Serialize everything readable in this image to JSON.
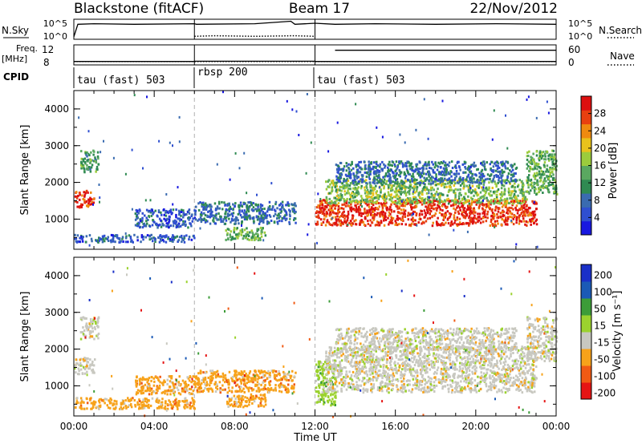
{
  "header": {
    "title": "Blackstone (fitACF)",
    "beam": "Beam 17",
    "date": "22/Nov/2012"
  },
  "colors": {
    "power": [
      "#1818e0",
      "#2f4fd0",
      "#3a6bb0",
      "#2f8a52",
      "#5aa860",
      "#9ccc3c",
      "#e8c21c",
      "#ef8a10",
      "#e84010",
      "#dd1010"
    ],
    "velocity": [
      "#e51414",
      "#f05a14",
      "#f7a21a",
      "#c8c8c0",
      "#9bd22e",
      "#3c9c38",
      "#1b5ab6",
      "#1a30c8"
    ],
    "guide": "#b0b0b0"
  },
  "chart_data": [
    {
      "type": "line",
      "name": "nsky-nsearch",
      "left_label": "N.Sky",
      "right_label": "N.Search",
      "left_ticks": [
        "10^5",
        "10^0"
      ],
      "right_ticks": [
        "10^5",
        "10^0"
      ],
      "series": [
        {
          "name": "N.Sky",
          "style": "solid",
          "x": [
            0,
            0.2,
            1,
            3,
            6,
            6.1,
            9,
            10.8,
            11,
            12,
            13,
            15,
            18,
            21,
            24
          ],
          "y": [
            0.5,
            3.0,
            3.1,
            3.0,
            3.1,
            3.0,
            3.1,
            3.6,
            3.0,
            3.2,
            3.0,
            3.1,
            3.0,
            3.1,
            3.0
          ]
        },
        {
          "name": "N.Search",
          "style": "dotted",
          "x": [
            6,
            7,
            9,
            11,
            12
          ],
          "y": [
            0.6,
            0.7,
            0.6,
            0.7,
            0.6
          ]
        }
      ]
    },
    {
      "type": "line",
      "name": "freq-nave",
      "left_label": "Freq.",
      "left_unit": "[MHz]",
      "right_label": "Nave",
      "left_ticks": [
        "12",
        "8"
      ],
      "right_ticks": [
        "60",
        "0"
      ],
      "series": [
        {
          "name": "Freq.",
          "style": "solid",
          "x": [
            0,
            6,
            6,
            12,
            12,
            24
          ],
          "y": [
            10.3,
            10.3,
            11.0,
            11.0,
            10.4,
            10.4
          ]
        },
        {
          "name": "Nave",
          "style": "dotted",
          "x": [
            0,
            6,
            12,
            12.9,
            13,
            24
          ],
          "y": [
            10,
            10,
            10,
            10,
            10,
            10
          ]
        },
        {
          "name": "Nave-upper",
          "style": "solid",
          "x": [
            13,
            24
          ],
          "y": [
            44,
            44
          ]
        }
      ]
    },
    {
      "type": "table",
      "name": "cpid",
      "label": "CPID",
      "segments": [
        {
          "start": 0,
          "end": 6,
          "text": "tau (fast) 503"
        },
        {
          "start": 6,
          "end": 12,
          "text": "rbsp 200"
        },
        {
          "start": 12,
          "end": 24,
          "text": "tau (fast) 503"
        }
      ]
    },
    {
      "type": "heatmap",
      "name": "power",
      "ylabel": "Slant Range [km]",
      "ylim": [
        180,
        4500
      ],
      "yticks": [
        1000,
        2000,
        3000,
        4000
      ],
      "xlim": [
        0,
        24
      ],
      "colorbar": {
        "label": "Power [dB]",
        "ticks": [
          4,
          8,
          12,
          16,
          20,
          24,
          28
        ],
        "range": [
          0,
          32
        ]
      },
      "blobs": [
        {
          "t0": 0.0,
          "t1": 1.0,
          "r0": 1350,
          "r1": 1800,
          "level": 8.5
        },
        {
          "t0": 0.3,
          "t1": 1.2,
          "r0": 2300,
          "r1": 2900,
          "level": 3.5
        },
        {
          "t0": 0.0,
          "t1": 6.0,
          "r0": 400,
          "r1": 600,
          "level": 1.5
        },
        {
          "t0": 3.0,
          "t1": 6.0,
          "r0": 800,
          "r1": 1300,
          "level": 1.5
        },
        {
          "t0": 6.0,
          "t1": 11.0,
          "r0": 900,
          "r1": 1500,
          "level": 2.0
        },
        {
          "t0": 7.5,
          "t1": 9.5,
          "r0": 450,
          "r1": 800,
          "level": 4.0
        },
        {
          "t0": 12.0,
          "t1": 23.0,
          "r0": 850,
          "r1": 1550,
          "level": 8.5
        },
        {
          "t0": 12.5,
          "t1": 22.5,
          "r0": 1450,
          "r1": 2100,
          "level": 4.5
        },
        {
          "t0": 13.0,
          "t1": 22.0,
          "r0": 2000,
          "r1": 2600,
          "level": 2.0
        },
        {
          "t0": 22.5,
          "t1": 24.0,
          "r0": 1700,
          "r1": 2900,
          "level": 4.0
        }
      ]
    },
    {
      "type": "heatmap",
      "name": "velocity",
      "ylabel": "Slant Range [km]",
      "ylim": [
        180,
        4500
      ],
      "yticks": [
        1000,
        2000,
        3000,
        4000
      ],
      "xlim": [
        0,
        24
      ],
      "xticks": [
        "00:00",
        "04:00",
        "08:00",
        "12:00",
        "16:00",
        "20:00",
        "00:00"
      ],
      "xlabel": "Time UT",
      "colorbar": {
        "label": "Velocity [m s⁻¹]",
        "ticks": [
          "200",
          "100",
          "50",
          "15",
          "-15",
          "-50",
          "-100",
          "-200"
        ]
      },
      "blobs": [
        {
          "t0": 0.0,
          "t1": 1.0,
          "r0": 1350,
          "r1": 1800,
          "level": 3
        },
        {
          "t0": 0.3,
          "t1": 1.2,
          "r0": 2300,
          "r1": 2900,
          "level": 3
        },
        {
          "t0": 0.0,
          "t1": 6.0,
          "r0": 400,
          "r1": 700,
          "level": 2
        },
        {
          "t0": 3.0,
          "t1": 6.0,
          "r0": 800,
          "r1": 1300,
          "level": 2
        },
        {
          "t0": 6.0,
          "t1": 11.0,
          "r0": 850,
          "r1": 1450,
          "level": 2
        },
        {
          "t0": 7.5,
          "t1": 9.5,
          "r0": 450,
          "r1": 800,
          "level": 2
        },
        {
          "t0": 12.0,
          "t1": 13.0,
          "r0": 500,
          "r1": 1700,
          "level": 4
        },
        {
          "t0": 12.5,
          "t1": 23.0,
          "r0": 850,
          "r1": 2100,
          "level": 3
        },
        {
          "t0": 13.0,
          "t1": 22.0,
          "r0": 2000,
          "r1": 2600,
          "level": 3
        },
        {
          "t0": 22.5,
          "t1": 24.0,
          "r0": 1700,
          "r1": 2900,
          "level": 3
        }
      ]
    }
  ]
}
